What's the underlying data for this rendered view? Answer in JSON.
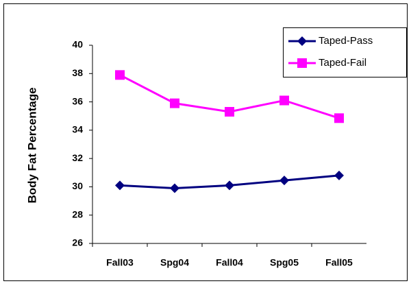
{
  "chart_data": {
    "type": "line",
    "categories": [
      "Fall03",
      "Spg04",
      "Fall04",
      "Spg05",
      "Fall05"
    ],
    "y_label": "Body Fat Percentage",
    "ylim": [
      26,
      40
    ],
    "yticks": [
      26,
      28,
      30,
      32,
      34,
      36,
      38,
      40
    ],
    "legend": "top-right",
    "series": [
      {
        "name": "Taped-Pass",
        "color": "#000080",
        "marker": "diamond",
        "values": [
          30.1,
          29.9,
          30.1,
          30.45,
          30.8
        ]
      },
      {
        "name": "Taped-Fail",
        "color": "#ff00ff",
        "marker": "square",
        "values": [
          37.9,
          35.9,
          35.3,
          36.1,
          34.85
        ]
      }
    ]
  }
}
